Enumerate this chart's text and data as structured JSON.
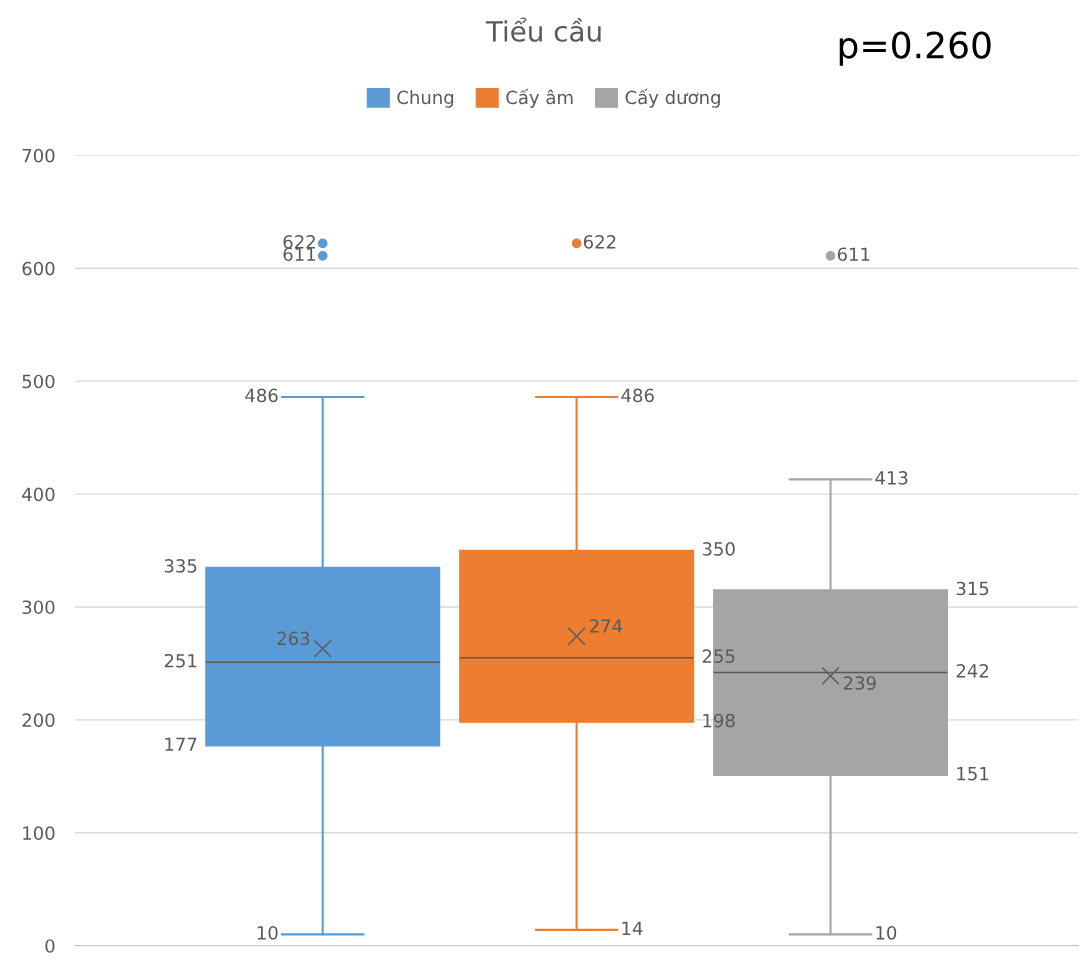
{
  "chart_data": {
    "type": "box",
    "title": "Tiểu cầu",
    "annotations": [
      "p=0.260"
    ],
    "categories": [
      null
    ],
    "series": [
      {
        "name": "Chung",
        "color": "#5b9bd5",
        "boxes": [
          {
            "low": 10,
            "q1": 177,
            "median": 251,
            "q3": 335,
            "high": 486,
            "mean": 263,
            "outliers": [
              611,
              622
            ]
          }
        ],
        "value_labels": [
          [
            "10",
            "177",
            "251",
            "335",
            "486",
            "263",
            "611",
            "622"
          ]
        ]
      },
      {
        "name": "Cấy âm",
        "color": "#ed7d31",
        "boxes": [
          {
            "low": 14,
            "q1": 198,
            "median": 255,
            "q3": 350,
            "high": 486,
            "mean": 274,
            "outliers": [
              622
            ]
          }
        ],
        "value_labels": [
          [
            "14",
            "198",
            "255",
            "350",
            "486",
            "274",
            "622"
          ]
        ]
      },
      {
        "name": "Cấy dương",
        "color": "#a5a5a5",
        "boxes": [
          {
            "low": 10,
            "q1": 151,
            "median": 242,
            "q3": 315,
            "high": 413,
            "mean": 239,
            "outliers": [
              611
            ]
          }
        ],
        "value_labels": [
          [
            "10",
            "151",
            "242",
            "315",
            "413",
            "239",
            "611"
          ]
        ]
      }
    ],
    "ylim": [
      0,
      700
    ],
    "yticks": [
      0,
      100,
      200,
      300,
      400,
      500,
      600,
      700
    ],
    "grid": "y",
    "legend": "top",
    "marker": "cross"
  }
}
